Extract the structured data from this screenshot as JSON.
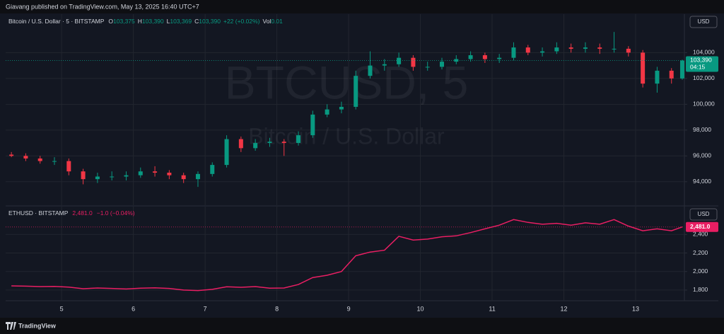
{
  "header": {
    "published": "Giavang published on TradingView.com, May 13, 2025 16:40 UTC+7"
  },
  "footer": {
    "brand": "TradingView"
  },
  "chart_data": [
    {
      "type": "candlestick",
      "symbol": "Bitcoin / U.S. Dollar · 5 · BITSTAMP",
      "legend": [
        {
          "key": "O",
          "value": "103,375"
        },
        {
          "key": "H",
          "value": "103,390"
        },
        {
          "key": "L",
          "value": "103,369"
        },
        {
          "key": "C",
          "value": "103,390"
        }
      ],
      "change": "+22 (+0.02%)",
      "volume": {
        "key": "Vol",
        "value": "0.01"
      },
      "watermark": [
        "BTCUSD, 5",
        "Bitcoin / U.S. Dollar"
      ],
      "currency": "USD",
      "last_price": {
        "value": 103390,
        "label": "103,390"
      },
      "countdown": "04:15",
      "up_color": "#089981",
      "down_color": "#f23645",
      "x": [
        4.3,
        4.5,
        4.7,
        4.9,
        5.1,
        5.3,
        5.5,
        5.7,
        5.9,
        6.1,
        6.3,
        6.5,
        6.7,
        6.9,
        7.1,
        7.3,
        7.5,
        7.7,
        7.9,
        8.1,
        8.3,
        8.5,
        8.7,
        8.9,
        9.1,
        9.3,
        9.5,
        9.7,
        9.9,
        10.1,
        10.3,
        10.5,
        10.7,
        10.9,
        11.1,
        11.3,
        11.5,
        11.7,
        11.9,
        12.1,
        12.3,
        12.5,
        12.7,
        12.9,
        13.1,
        13.3,
        13.5,
        13.65
      ],
      "open": [
        96100,
        96000,
        95800,
        95600,
        95600,
        94800,
        94200,
        94400,
        94400,
        94500,
        94800,
        94700,
        94500,
        94200,
        94600,
        95300,
        97300,
        96600,
        97000,
        97100,
        97000,
        97600,
        99200,
        99600,
        99800,
        102200,
        103000,
        103100,
        103600,
        102900,
        102900,
        103300,
        103500,
        103800,
        103500,
        103600,
        104400,
        104000,
        104100,
        104400,
        104300,
        104400,
        104300,
        104300,
        104000,
        101600,
        102600,
        102000
      ],
      "high": [
        96300,
        96200,
        96000,
        95900,
        95800,
        95000,
        94700,
        94800,
        94800,
        95100,
        95200,
        94900,
        94700,
        94800,
        95500,
        97600,
        97500,
        97300,
        97400,
        97300,
        97900,
        99500,
        100000,
        100200,
        102600,
        104100,
        103500,
        104000,
        103800,
        103300,
        103600,
        103800,
        104100,
        104000,
        103900,
        104800,
        104600,
        104400,
        104800,
        104700,
        104800,
        104700,
        105600,
        104500,
        104200,
        102900,
        102800,
        103450
      ],
      "low": [
        95900,
        95600,
        95400,
        95300,
        94500,
        93800,
        93900,
        94100,
        94100,
        94300,
        94400,
        94200,
        93900,
        93600,
        94400,
        95100,
        96300,
        96400,
        96700,
        96000,
        96800,
        97400,
        99000,
        99300,
        99600,
        102000,
        102600,
        102900,
        102600,
        102600,
        102700,
        103100,
        103300,
        103200,
        103200,
        103400,
        103800,
        103700,
        103900,
        104000,
        104000,
        103900,
        104000,
        103700,
        101300,
        100900,
        101600,
        101900
      ],
      "close": [
        96000,
        95800,
        95600,
        95600,
        94800,
        94200,
        94400,
        94400,
        94500,
        94800,
        94700,
        94500,
        94200,
        94600,
        95300,
        97300,
        96600,
        97000,
        97100,
        97000,
        97600,
        99200,
        99600,
        99800,
        102200,
        103000,
        103100,
        103600,
        102900,
        102900,
        103300,
        103500,
        103800,
        103500,
        103600,
        104400,
        104000,
        104100,
        104400,
        104300,
        104400,
        104300,
        104300,
        104000,
        101600,
        102600,
        102000,
        103390
      ],
      "xlim": [
        4.22,
        13.68
      ],
      "xticks": [
        5,
        6,
        7,
        8,
        9,
        10,
        11,
        12,
        13
      ],
      "ylim": [
        92180,
        106980
      ],
      "yticks": [
        {
          "value": 94000,
          "label": "94,000"
        },
        {
          "value": 96000,
          "label": "96,000"
        },
        {
          "value": 98000,
          "label": "98,000"
        },
        {
          "value": 100000,
          "label": "100,000"
        },
        {
          "value": 102000,
          "label": "102,000"
        },
        {
          "value": 104000,
          "label": "104,000"
        }
      ],
      "grid": true
    },
    {
      "type": "line",
      "symbol": "ETHUSD · BITSTAMP",
      "change": "−1.0 (−0.04%)",
      "currency": "USD",
      "last_price": {
        "value": 2481.0,
        "label": "2,481.0"
      },
      "color": "#e91e63",
      "x": [
        4.3,
        4.5,
        4.7,
        4.9,
        5.1,
        5.3,
        5.5,
        5.7,
        5.9,
        6.1,
        6.3,
        6.5,
        6.7,
        6.9,
        7.1,
        7.3,
        7.5,
        7.7,
        7.9,
        8.1,
        8.3,
        8.5,
        8.7,
        8.9,
        9.1,
        9.3,
        9.5,
        9.7,
        9.9,
        10.1,
        10.3,
        10.5,
        10.7,
        10.9,
        11.1,
        11.3,
        11.5,
        11.7,
        11.9,
        12.1,
        12.3,
        12.5,
        12.7,
        12.9,
        13.1,
        13.3,
        13.5,
        13.65
      ],
      "values": [
        1845,
        1842,
        1838,
        1840,
        1832,
        1815,
        1822,
        1818,
        1812,
        1820,
        1825,
        1818,
        1800,
        1795,
        1808,
        1835,
        1830,
        1838,
        1820,
        1822,
        1860,
        1935,
        1960,
        2000,
        2170,
        2210,
        2230,
        2380,
        2340,
        2350,
        2375,
        2385,
        2420,
        2460,
        2500,
        2560,
        2530,
        2510,
        2520,
        2500,
        2525,
        2510,
        2560,
        2490,
        2440,
        2460,
        2440,
        2481
      ],
      "xlim": [
        4.22,
        13.68
      ],
      "xticks": [
        5,
        6,
        7,
        8,
        9,
        10,
        11,
        12,
        13
      ],
      "ylim": [
        1685,
        2700
      ],
      "yticks": [
        {
          "value": 1800,
          "label": "1,800"
        },
        {
          "value": 2000,
          "label": "2,000"
        },
        {
          "value": 2200,
          "label": "2,200"
        },
        {
          "value": 2400,
          "label": "2,400"
        }
      ],
      "grid": true
    }
  ]
}
